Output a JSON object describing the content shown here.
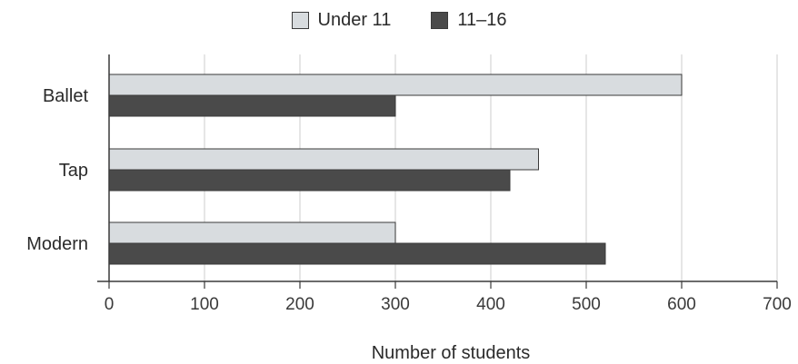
{
  "chart_data": {
    "type": "bar",
    "orientation": "horizontal",
    "title": "",
    "xlabel": "Number of students",
    "ylabel": "",
    "categories": [
      "Ballet",
      "Tap",
      "Modern"
    ],
    "series": [
      {
        "name": "Under 11",
        "values": [
          600,
          450,
          300
        ],
        "color": "#d8dcdf"
      },
      {
        "name": "11–16",
        "values": [
          300,
          420,
          520
        ],
        "color": "#4a4a4a"
      }
    ],
    "xlim": [
      0,
      700
    ],
    "xticks": [
      "0",
      "100",
      "200",
      "300",
      "400",
      "500",
      "600",
      "700"
    ],
    "grid": "vertical",
    "legend_position": "top-center"
  }
}
